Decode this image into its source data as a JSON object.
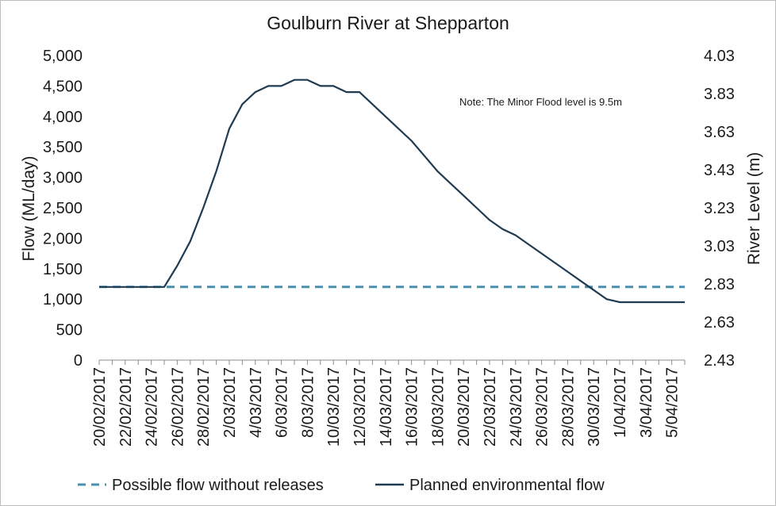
{
  "chart_data": {
    "type": "line",
    "title": "Goulburn River at Shepparton",
    "ylabel": "Flow (ML/day)",
    "y2label": "River Level (m)",
    "xlabel": "",
    "ylim": [
      0,
      5000
    ],
    "y2lim": [
      2.43,
      4.03
    ],
    "yticks": [
      "0",
      "500",
      "1,000",
      "1,500",
      "2,000",
      "2,500",
      "3,000",
      "3,500",
      "4,000",
      "4,500",
      "5,000"
    ],
    "y2ticks": [
      "2.43",
      "2.63",
      "2.83",
      "3.03",
      "3.23",
      "3.43",
      "3.63",
      "3.83",
      "4.03"
    ],
    "x": [
      "20/02/2017",
      "21/02/2017",
      "22/02/2017",
      "23/02/2017",
      "24/02/2017",
      "25/02/2017",
      "26/02/2017",
      "27/02/2017",
      "28/02/2017",
      "1/03/2017",
      "2/03/2017",
      "3/03/2017",
      "4/03/2017",
      "5/03/2017",
      "6/03/2017",
      "7/03/2017",
      "8/03/2017",
      "9/03/2017",
      "10/03/2017",
      "11/03/2017",
      "12/03/2017",
      "13/03/2017",
      "14/03/2017",
      "15/03/2017",
      "16/03/2017",
      "17/03/2017",
      "18/03/2017",
      "19/03/2017",
      "20/03/2017",
      "21/03/2017",
      "22/03/2017",
      "23/03/2017",
      "24/03/2017",
      "25/03/2017",
      "26/03/2017",
      "27/03/2017",
      "28/03/2017",
      "29/03/2017",
      "30/03/2017",
      "31/03/2017",
      "1/04/2017",
      "2/04/2017",
      "3/04/2017",
      "4/04/2017",
      "5/04/2017",
      "6/04/2017"
    ],
    "xtick_labels": [
      "20/02/2017",
      "22/02/2017",
      "24/02/2017",
      "26/02/2017",
      "28/02/2017",
      "2/03/2017",
      "4/03/2017",
      "6/03/2017",
      "8/03/2017",
      "10/03/2017",
      "12/03/2017",
      "14/03/2017",
      "16/03/2017",
      "18/03/2017",
      "20/03/2017",
      "22/03/2017",
      "24/03/2017",
      "26/03/2017",
      "28/03/2017",
      "30/03/2017",
      "1/04/2017",
      "3/04/2017",
      "5/04/2017"
    ],
    "series": [
      {
        "name": "Possible flow without releases",
        "color": "#4a90ad",
        "style": "dashed",
        "values": [
          1200,
          1200,
          1200,
          1200,
          1200,
          1200,
          1200,
          1200,
          1200,
          1200,
          1200,
          1200,
          1200,
          1200,
          1200,
          1200,
          1200,
          1200,
          1200,
          1200,
          1200,
          1200,
          1200,
          1200,
          1200,
          1200,
          1200,
          1200,
          1200,
          1200,
          1200,
          1200,
          1200,
          1200,
          1200,
          1200,
          1200,
          1200,
          1200,
          1200,
          1200,
          1200,
          1200,
          1200,
          1200,
          1200
        ]
      },
      {
        "name": "Planned environmental flow",
        "color": "#1f3b52",
        "style": "solid",
        "values": [
          1200,
          1200,
          1200,
          1200,
          1200,
          1200,
          1550,
          1950,
          2500,
          3100,
          3800,
          4200,
          4400,
          4500,
          4500,
          4600,
          4600,
          4500,
          4500,
          4400,
          4400,
          4200,
          4000,
          3800,
          3600,
          3350,
          3100,
          2900,
          2700,
          2500,
          2300,
          2150,
          2050,
          1900,
          1750,
          1600,
          1450,
          1300,
          1150,
          1000,
          950,
          950,
          950,
          950,
          950,
          950
        ]
      }
    ],
    "annotations": [
      "Note: The Minor Flood level is 9.5m"
    ],
    "legend": "bottom",
    "grid": false
  }
}
